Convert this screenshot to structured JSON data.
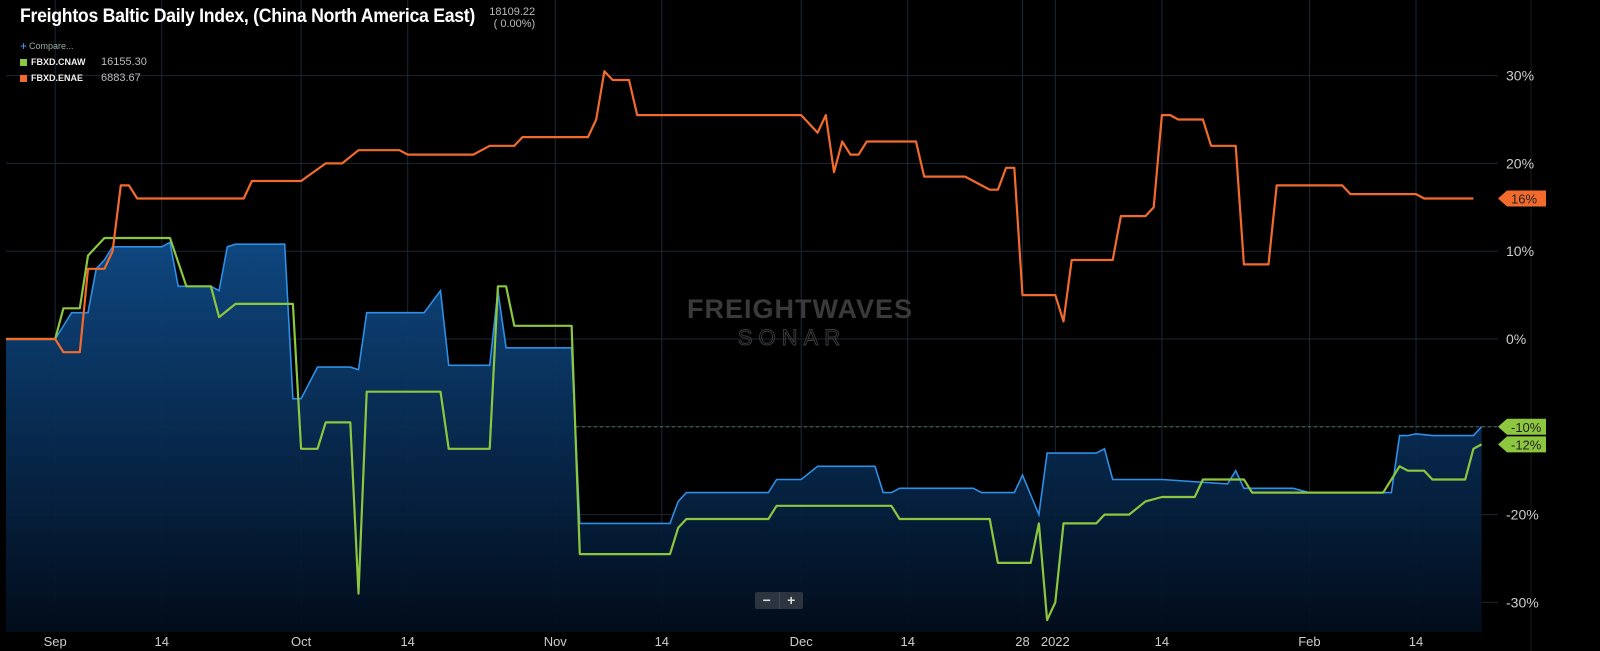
{
  "header": {
    "title": "Freightos Baltic Daily Index, (China North America East)",
    "quote_value": "18109.22",
    "quote_change": "( 0.00%)"
  },
  "legend": {
    "compare_label": "Compare...",
    "items": [
      {
        "symbol": "FBXD.CNAW",
        "value": "16155.30",
        "color": "#8dc63f"
      },
      {
        "symbol": "FBXD.ENAE",
        "value": "6883.67",
        "color": "#f26b2d"
      }
    ]
  },
  "watermark": {
    "line1": "FREIGHTWAVES",
    "line2": "SONAR"
  },
  "zoom": {
    "minus": "−",
    "plus": "+"
  },
  "colors": {
    "background": "#000000",
    "grid": "#1d2733",
    "area_line": "#2f8ee5",
    "cnaw": "#8dc63f",
    "enae": "#f26b2d",
    "label_text": "#bbbbbb"
  },
  "chart_data": {
    "type": "line",
    "x_unit": "date",
    "xlim": [
      "2021-08-26",
      "2022-02-24"
    ],
    "ylim": [
      -32,
      38
    ],
    "y_ticks": [
      30,
      20,
      10,
      0,
      -10,
      -20,
      -30
    ],
    "y_tick_labels": [
      "30%",
      "20%",
      "10%",
      "0%",
      "",
      "-20%",
      "-30%"
    ],
    "x_ticks": [
      {
        "date": "2021-09-01",
        "label": "Sep"
      },
      {
        "date": "2021-09-14",
        "label": "14"
      },
      {
        "date": "2021-10-01",
        "label": "Oct"
      },
      {
        "date": "2021-10-14",
        "label": "14"
      },
      {
        "date": "2021-11-01",
        "label": "Nov"
      },
      {
        "date": "2021-11-14",
        "label": "14"
      },
      {
        "date": "2021-12-01",
        "label": "Dec"
      },
      {
        "date": "2021-12-14",
        "label": "14"
      },
      {
        "date": "2021-12-28",
        "label": "28"
      },
      {
        "date": "2022-01-01",
        "label": "2022"
      },
      {
        "date": "2022-01-14",
        "label": "14"
      },
      {
        "date": "2022-02-01",
        "label": "Feb"
      },
      {
        "date": "2022-02-14",
        "label": "14"
      }
    ],
    "reference_line": -10,
    "end_labels": [
      {
        "value": 16,
        "text": "16%",
        "color": "#f26b2d"
      },
      {
        "value": -10,
        "text": "-10%",
        "color": "#8dc63f"
      },
      {
        "value": -12,
        "text": "-12%",
        "color": "#8dc63f"
      }
    ],
    "series": [
      {
        "style": "area",
        "color": "#2f8ee5",
        "points": [
          [
            "2021-08-26",
            0
          ],
          [
            "2021-09-01",
            0
          ],
          [
            "2021-09-03",
            3
          ],
          [
            "2021-09-05",
            3
          ],
          [
            "2021-09-06",
            8
          ],
          [
            "2021-09-07",
            9
          ],
          [
            "2021-09-08",
            10.5
          ],
          [
            "2021-09-14",
            10.5
          ],
          [
            "2021-09-15",
            11
          ],
          [
            "2021-09-16",
            6
          ],
          [
            "2021-09-20",
            6
          ],
          [
            "2021-09-21",
            5.5
          ],
          [
            "2021-09-22",
            10.5
          ],
          [
            "2021-09-23",
            10.8
          ],
          [
            "2021-09-29",
            10.8
          ],
          [
            "2021-09-30",
            -6.8
          ],
          [
            "2021-10-01",
            -6.8
          ],
          [
            "2021-10-03",
            -3.2
          ],
          [
            "2021-10-07",
            -3.2
          ],
          [
            "2021-10-08",
            -3.5
          ],
          [
            "2021-10-09",
            3
          ],
          [
            "2021-10-13",
            3
          ],
          [
            "2021-10-16",
            3
          ],
          [
            "2021-10-18",
            5.5
          ],
          [
            "2021-10-19",
            -3
          ],
          [
            "2021-10-24",
            -3
          ],
          [
            "2021-10-25",
            5.5
          ],
          [
            "2021-10-26",
            -1
          ],
          [
            "2021-11-03",
            -1
          ],
          [
            "2021-11-04",
            -21
          ],
          [
            "2021-11-11",
            -21
          ],
          [
            "2021-11-15",
            -21
          ],
          [
            "2021-11-16",
            -18.5
          ],
          [
            "2021-11-17",
            -17.5
          ],
          [
            "2021-11-27",
            -17.5
          ],
          [
            "2021-11-28",
            -16
          ],
          [
            "2021-12-01",
            -16
          ],
          [
            "2021-12-03",
            -14.5
          ],
          [
            "2021-12-10",
            -14.5
          ],
          [
            "2021-12-11",
            -17.5
          ],
          [
            "2021-12-12",
            -17.5
          ],
          [
            "2021-12-13",
            -17
          ],
          [
            "2021-12-22",
            -17
          ],
          [
            "2021-12-23",
            -17.5
          ],
          [
            "2021-12-27",
            -17.5
          ],
          [
            "2021-12-28",
            -15.5
          ],
          [
            "2021-12-30",
            -20
          ],
          [
            "2021-12-31",
            -13
          ],
          [
            "2022-01-06",
            -13
          ],
          [
            "2022-01-07",
            -12.5
          ],
          [
            "2022-01-08",
            -16
          ],
          [
            "2022-01-14",
            -16
          ],
          [
            "2022-01-22",
            -16.5
          ],
          [
            "2022-01-23",
            -15
          ],
          [
            "2022-01-24",
            -17
          ],
          [
            "2022-01-30",
            -17
          ],
          [
            "2022-02-01",
            -17.5
          ],
          [
            "2022-02-11",
            -17.5
          ],
          [
            "2022-02-12",
            -11
          ],
          [
            "2022-02-13",
            -11
          ],
          [
            "2022-02-14",
            -10.8
          ],
          [
            "2022-02-16",
            -11
          ],
          [
            "2022-02-21",
            -11
          ],
          [
            "2022-02-22",
            -10
          ]
        ]
      },
      {
        "name": "FBXD.CNAW",
        "style": "line",
        "color": "#8dc63f",
        "points": [
          [
            "2021-08-26",
            0
          ],
          [
            "2021-09-01",
            0
          ],
          [
            "2021-09-02",
            3.5
          ],
          [
            "2021-09-04",
            3.5
          ],
          [
            "2021-09-05",
            9.5
          ],
          [
            "2021-09-07",
            11.5
          ],
          [
            "2021-09-14",
            11.5
          ],
          [
            "2021-09-15",
            11.5
          ],
          [
            "2021-09-17",
            6
          ],
          [
            "2021-09-20",
            6
          ],
          [
            "2021-09-21",
            2.5
          ],
          [
            "2021-09-23",
            4
          ],
          [
            "2021-09-30",
            4
          ],
          [
            "2021-10-01",
            -12.5
          ],
          [
            "2021-10-03",
            -12.5
          ],
          [
            "2021-10-04",
            -9.5
          ],
          [
            "2021-10-07",
            -9.5
          ],
          [
            "2021-10-08",
            -29
          ],
          [
            "2021-10-09",
            -6
          ],
          [
            "2021-10-13",
            -6
          ],
          [
            "2021-10-16",
            -6
          ],
          [
            "2021-10-18",
            -6
          ],
          [
            "2021-10-19",
            -12.5
          ],
          [
            "2021-10-23",
            -12.5
          ],
          [
            "2021-10-24",
            -12.5
          ],
          [
            "2021-10-25",
            6
          ],
          [
            "2021-10-26",
            6
          ],
          [
            "2021-10-27",
            1.5
          ],
          [
            "2021-11-03",
            1.5
          ],
          [
            "2021-11-04",
            -24.5
          ],
          [
            "2021-11-09",
            -24.5
          ],
          [
            "2021-11-10",
            -24.5
          ],
          [
            "2021-11-11",
            -24.5
          ],
          [
            "2021-11-15",
            -24.5
          ],
          [
            "2021-11-16",
            -21.5
          ],
          [
            "2021-11-17",
            -20.5
          ],
          [
            "2021-11-27",
            -20.5
          ],
          [
            "2021-11-28",
            -19
          ],
          [
            "2021-12-01",
            -19
          ],
          [
            "2021-12-10",
            -19
          ],
          [
            "2021-12-12",
            -19
          ],
          [
            "2021-12-13",
            -20.5
          ],
          [
            "2021-12-22",
            -20.5
          ],
          [
            "2021-12-24",
            -20.5
          ],
          [
            "2021-12-25",
            -25.5
          ],
          [
            "2021-12-29",
            -25.5
          ],
          [
            "2021-12-30",
            -21
          ],
          [
            "2021-12-31",
            -32
          ],
          [
            "2022-01-01",
            -30
          ],
          [
            "2022-01-02",
            -21
          ],
          [
            "2022-01-06",
            -21
          ],
          [
            "2022-01-07",
            -20
          ],
          [
            "2022-01-10",
            -20
          ],
          [
            "2022-01-12",
            -18.5
          ],
          [
            "2022-01-14",
            -18
          ],
          [
            "2022-01-18",
            -18
          ],
          [
            "2022-01-19",
            -16
          ],
          [
            "2022-01-24",
            -16
          ],
          [
            "2022-01-25",
            -17.5
          ],
          [
            "2022-02-10",
            -17.5
          ],
          [
            "2022-02-12",
            -14.5
          ],
          [
            "2022-02-13",
            -15
          ],
          [
            "2022-02-15",
            -15
          ],
          [
            "2022-02-16",
            -16
          ],
          [
            "2022-02-20",
            -16
          ],
          [
            "2022-02-21",
            -12.5
          ],
          [
            "2022-02-22",
            -12
          ]
        ]
      },
      {
        "name": "FBXD.ENAE",
        "style": "line",
        "color": "#f26b2d",
        "points": [
          [
            "2021-08-26",
            0
          ],
          [
            "2021-09-01",
            0
          ],
          [
            "2021-09-02",
            -1.5
          ],
          [
            "2021-09-04",
            -1.5
          ],
          [
            "2021-09-05",
            8
          ],
          [
            "2021-09-07",
            8
          ],
          [
            "2021-09-08",
            10
          ],
          [
            "2021-09-09",
            17.5
          ],
          [
            "2021-09-10",
            17.5
          ],
          [
            "2021-09-11",
            16
          ],
          [
            "2021-09-14",
            16
          ],
          [
            "2021-09-17",
            16
          ],
          [
            "2021-09-24",
            16
          ],
          [
            "2021-09-25",
            18
          ],
          [
            "2021-10-01",
            18
          ],
          [
            "2021-10-04",
            20
          ],
          [
            "2021-10-06",
            20
          ],
          [
            "2021-10-08",
            21.5
          ],
          [
            "2021-10-13",
            21.5
          ],
          [
            "2021-10-14",
            21
          ],
          [
            "2021-10-22",
            21
          ],
          [
            "2021-10-24",
            22
          ],
          [
            "2021-10-27",
            22
          ],
          [
            "2021-10-28",
            23
          ],
          [
            "2021-11-01",
            23
          ],
          [
            "2021-11-05",
            23
          ],
          [
            "2021-11-06",
            25
          ],
          [
            "2021-11-07",
            30.5
          ],
          [
            "2021-11-08",
            29.5
          ],
          [
            "2021-11-10",
            29.5
          ],
          [
            "2021-11-11",
            25.5
          ],
          [
            "2021-11-15",
            25.5
          ],
          [
            "2021-11-18",
            25.5
          ],
          [
            "2021-11-30",
            25.5
          ],
          [
            "2021-12-01",
            25.5
          ],
          [
            "2021-12-03",
            23.5
          ],
          [
            "2021-12-04",
            25.5
          ],
          [
            "2021-12-05",
            19
          ],
          [
            "2021-12-06",
            22.5
          ],
          [
            "2021-12-07",
            21
          ],
          [
            "2021-12-08",
            21
          ],
          [
            "2021-12-09",
            22.5
          ],
          [
            "2021-12-15",
            22.5
          ],
          [
            "2021-12-16",
            18.5
          ],
          [
            "2021-12-21",
            18.5
          ],
          [
            "2021-12-24",
            17
          ],
          [
            "2021-12-25",
            17
          ],
          [
            "2021-12-26",
            19.5
          ],
          [
            "2021-12-27",
            19.5
          ],
          [
            "2021-12-28",
            5
          ],
          [
            "2022-01-01",
            5
          ],
          [
            "2022-01-02",
            2
          ],
          [
            "2022-01-03",
            9
          ],
          [
            "2022-01-08",
            9
          ],
          [
            "2022-01-09",
            14
          ],
          [
            "2022-01-12",
            14
          ],
          [
            "2022-01-13",
            15
          ],
          [
            "2022-01-14",
            25.5
          ],
          [
            "2022-01-15",
            25.5
          ],
          [
            "2022-01-16",
            25
          ],
          [
            "2022-01-19",
            25
          ],
          [
            "2022-01-20",
            22
          ],
          [
            "2022-01-23",
            22
          ],
          [
            "2022-01-24",
            8.5
          ],
          [
            "2022-01-27",
            8.5
          ],
          [
            "2022-01-28",
            17.5
          ],
          [
            "2022-02-05",
            17.5
          ],
          [
            "2022-02-06",
            16.5
          ],
          [
            "2022-02-14",
            16.5
          ],
          [
            "2022-02-15",
            16
          ],
          [
            "2022-02-20",
            16
          ],
          [
            "2022-02-21",
            16
          ]
        ]
      }
    ]
  }
}
